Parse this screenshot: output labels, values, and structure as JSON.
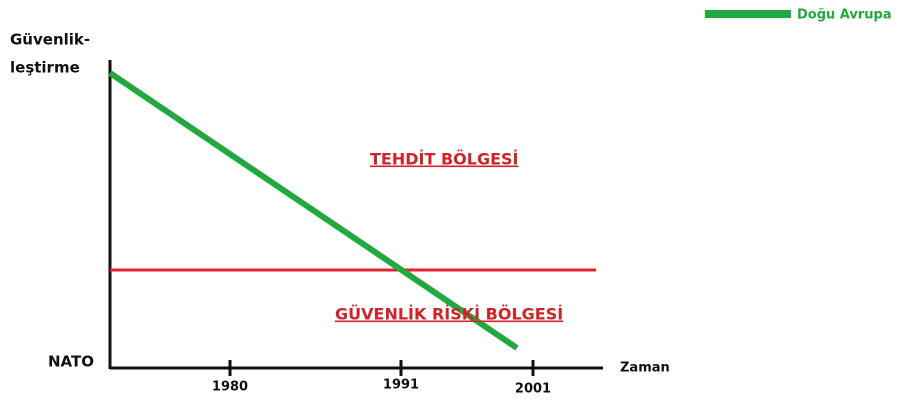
{
  "legend": {
    "label": "Doğu Avrupa"
  },
  "y_axis": {
    "title_lines": [
      "Güvenlik-",
      "leştirme"
    ],
    "origin_label": "NATO"
  },
  "x_axis": {
    "title": "Zaman",
    "ticks": [
      "1980",
      "1991",
      "2001"
    ]
  },
  "regions": {
    "upper": "TEHDİT BÖLGESİ",
    "lower": "GÜVENLİK RİSKİ BÖLGESİ"
  }
}
